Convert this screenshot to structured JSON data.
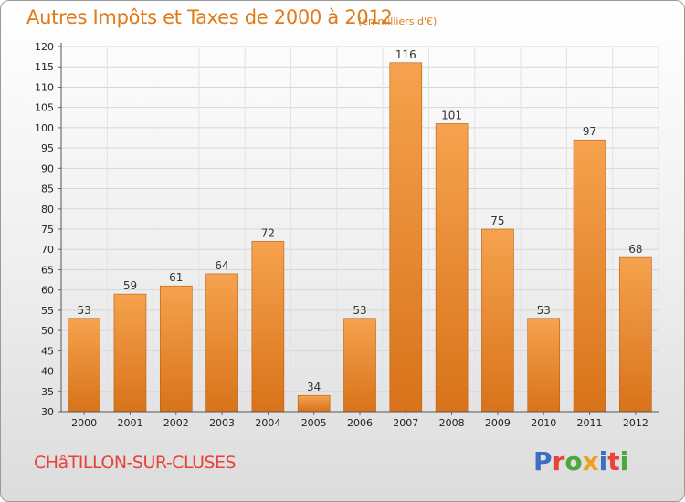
{
  "header": {
    "title": "Autres Impôts et Taxes de 2000 à 2012",
    "unit": "(en milliers d'€)"
  },
  "footer": {
    "commune": "CHâTILLON-SUR-CLUSES",
    "logo": "Proxiti"
  },
  "colors": {
    "title": "#e07a1a",
    "bar_light": "#f6a24e",
    "bar_dark": "#d8731a",
    "commune": "#e8423a",
    "logo_letters": [
      "#3a6fc4",
      "#e8423a",
      "#4aa83c",
      "#f0a020",
      "#3a6fc4",
      "#e8423a",
      "#4aa83c"
    ]
  },
  "chart_data": {
    "type": "bar",
    "categories": [
      "2000",
      "2001",
      "2002",
      "2003",
      "2004",
      "2005",
      "2006",
      "2007",
      "2008",
      "2009",
      "2010",
      "2011",
      "2012"
    ],
    "values": [
      53,
      59,
      61,
      64,
      72,
      34,
      53,
      116,
      101,
      75,
      53,
      97,
      68
    ],
    "title": "Autres Impôts et Taxes de 2000 à 2012",
    "subtitle": "(en milliers d'€)",
    "xlabel": "",
    "ylabel": "",
    "ylim": [
      30,
      120
    ],
    "yticks": [
      30,
      35,
      40,
      45,
      50,
      55,
      60,
      65,
      70,
      75,
      80,
      85,
      90,
      95,
      100,
      105,
      110,
      115,
      120
    ],
    "grid": true,
    "legend": "none"
  }
}
